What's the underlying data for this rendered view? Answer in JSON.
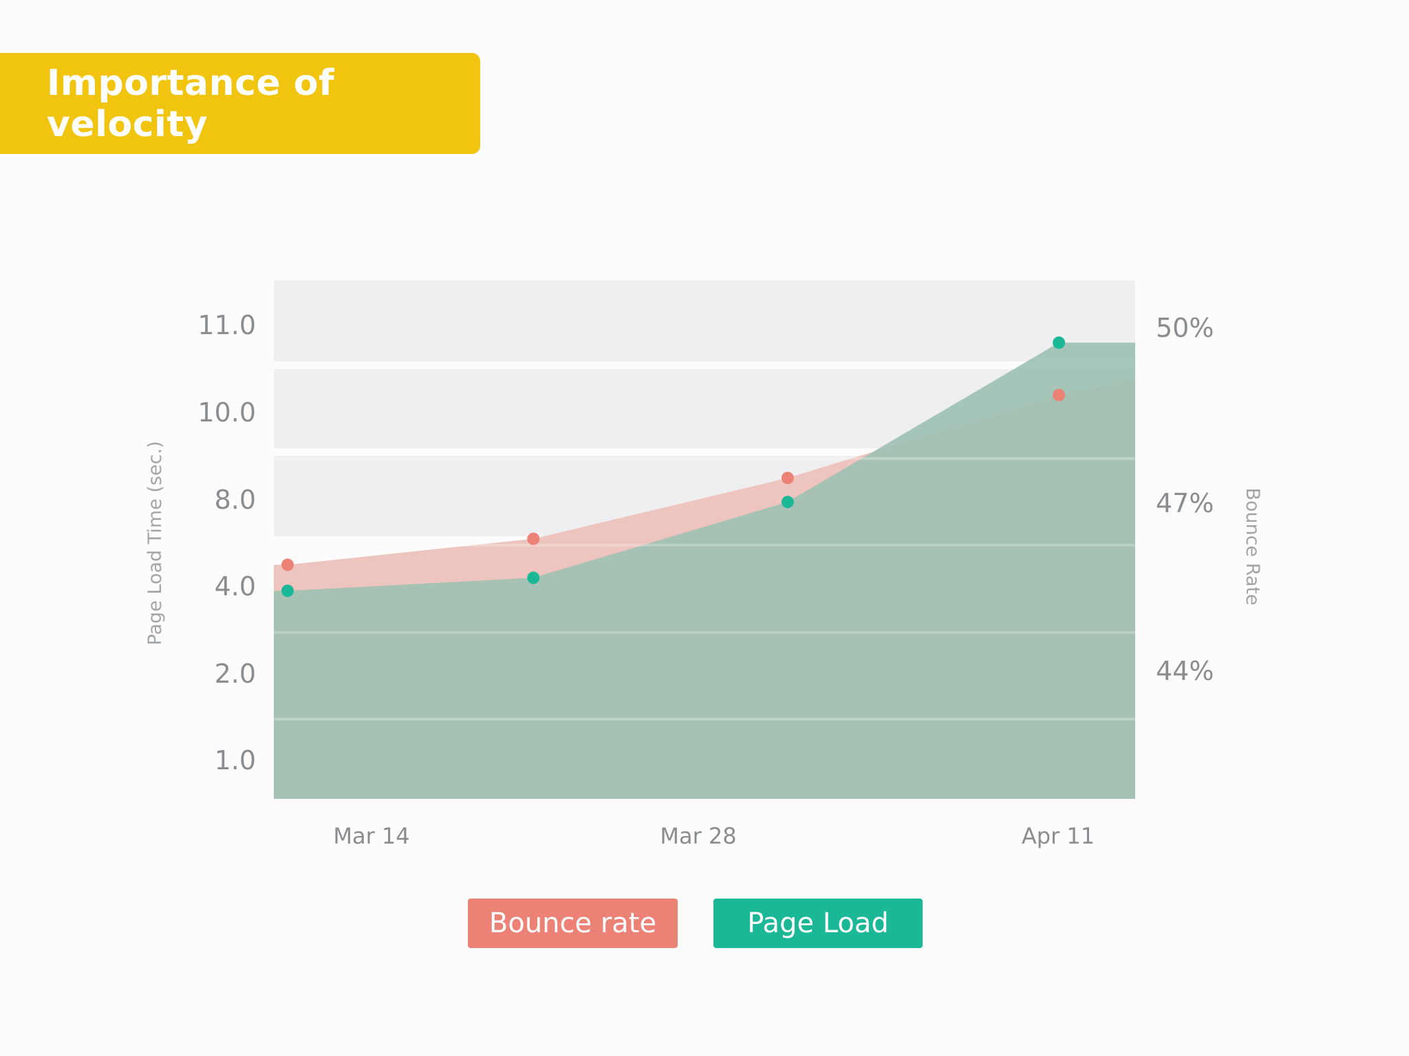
{
  "title": "Importance of velocity",
  "colors": {
    "banner": "#f1c40f",
    "bounce": "#ec8176",
    "bounce_fill": "#ecc1bb",
    "load": "#1bb898",
    "load_fill": "#9ec1b3",
    "band": "#efeef1",
    "axis_text": "#8a8d90"
  },
  "chart_data": {
    "type": "area",
    "title": "Importance of velocity",
    "x_ticks": [
      "Mar 14",
      "Mar 28",
      "Apr 11"
    ],
    "y_left_label": "Page Load Time (sec.)",
    "y_left_ticks": [
      "11.0",
      "10.0",
      "8.0",
      "4.0",
      "2.0",
      "1.0"
    ],
    "y_right_label": "Bounce Rate",
    "y_right_ticks": [
      "50%",
      "47%",
      "44%"
    ],
    "series": [
      {
        "name": "Bounce rate",
        "axis": "left",
        "points": [
          {
            "x": 0.0,
            "y": 5.0
          },
          {
            "x": 0.29,
            "y": 6.2
          },
          {
            "x": 0.59,
            "y": 8.5
          },
          {
            "x": 0.91,
            "y": 10.2
          }
        ],
        "end_value": 10.4
      },
      {
        "name": "Page Load",
        "axis": "left",
        "points": [
          {
            "x": 0.0,
            "y": 3.9
          },
          {
            "x": 0.29,
            "y": 4.4
          },
          {
            "x": 0.59,
            "y": 7.9
          },
          {
            "x": 0.91,
            "y": 10.8
          }
        ],
        "end_value": 10.8
      }
    ]
  },
  "legend": {
    "bounce_label": "Bounce rate",
    "load_label": "Page Load"
  }
}
